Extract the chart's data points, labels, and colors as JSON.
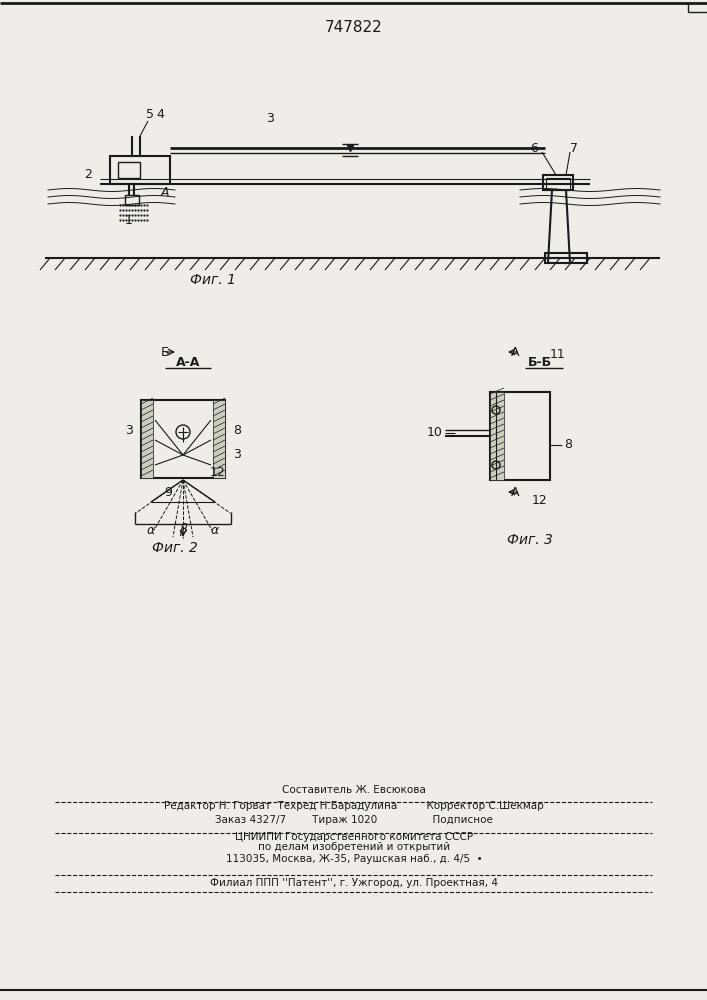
{
  "patent_number": "747822",
  "bg_color": "#f0ede8",
  "line_color": "#1a1a1a",
  "fig1_label": "Фиг. 1",
  "fig2_label": "Фиг. 2",
  "fig3_label": "Фиг. 3",
  "footer_lines": [
    "Составитель Ж. Евсюкова",
    "Редактор Н. Горват  Техред Н.Барадулина         Корректор С.Шекмар",
    "Заказ 4327/7        Тираж 1020                 Подписное",
    "ЦНИИПИ Государственного комитета СССР",
    "по делам изобретений и открытий",
    "113035, Москва, Ж-35, Раушская наб., д. 4/5  •",
    "Филиал ППП ''Патент'', г. Ужгород, ул. Проектная, 4"
  ]
}
